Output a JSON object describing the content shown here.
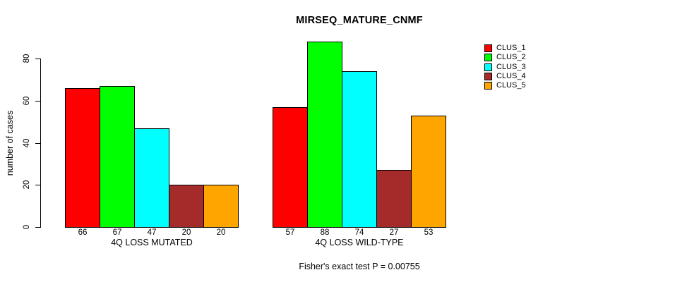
{
  "title": "MIRSEQ_MATURE_CNMF",
  "caption": "Fisher's exact test P = 0.00755",
  "chart_data": {
    "type": "bar",
    "title": "MIRSEQ_MATURE_CNMF",
    "xlabel": "",
    "ylabel": "number of cases",
    "ylim": [
      0,
      80
    ],
    "yticks": [
      "0",
      "20",
      "40",
      "60",
      "80"
    ],
    "grid": false,
    "legend_position": "right-of-plot",
    "bar_value_labels": true,
    "categories": [
      "4Q LOSS MUTATED",
      "4Q LOSS WILD-TYPE"
    ],
    "series": [
      {
        "name": "CLUS_1",
        "color": "#FF0000",
        "values": [
          66,
          57
        ]
      },
      {
        "name": "CLUS_2",
        "color": "#00FF00",
        "values": [
          67,
          88
        ]
      },
      {
        "name": "CLUS_3",
        "color": "#00FFFF",
        "values": [
          47,
          74
        ]
      },
      {
        "name": "CLUS_4",
        "color": "#A52A2A",
        "values": [
          20,
          27
        ]
      },
      {
        "name": "CLUS_5",
        "color": "#FFA500",
        "values": [
          20,
          53
        ]
      }
    ],
    "annotation": "Fisher's exact test P = 0.00755"
  }
}
